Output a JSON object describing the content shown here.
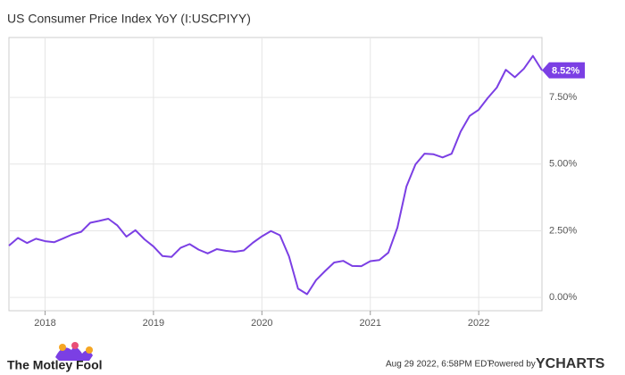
{
  "chart_data": {
    "type": "line",
    "title": "US Consumer Price Index YoY (I:USCPIYY)",
    "categories": [
      null,
      null,
      null,
      null,
      "2018",
      null,
      null,
      null,
      null,
      null,
      null,
      null,
      null,
      null,
      null,
      null,
      "2019",
      null,
      null,
      null,
      null,
      null,
      null,
      null,
      null,
      null,
      null,
      null,
      "2020",
      null,
      null,
      null,
      null,
      null,
      null,
      null,
      null,
      null,
      null,
      null,
      "2021",
      null,
      null,
      null,
      null,
      null,
      null,
      null,
      null,
      null,
      null,
      null,
      "2022",
      null,
      null,
      null,
      null,
      null,
      null,
      null
    ],
    "series": [
      {
        "name": "US Consumer Price Index YoY",
        "color": "#7b3fe4",
        "values": [
          1.94,
          2.23,
          2.04,
          2.2,
          2.11,
          2.07,
          2.21,
          2.36,
          2.46,
          2.8,
          2.87,
          2.95,
          2.7,
          2.28,
          2.52,
          2.18,
          1.91,
          1.55,
          1.52,
          1.86,
          2.0,
          1.79,
          1.65,
          1.81,
          1.75,
          1.71,
          1.76,
          2.05,
          2.29,
          2.49,
          2.33,
          1.54,
          0.33,
          0.12,
          0.65,
          0.99,
          1.31,
          1.37,
          1.18,
          1.17,
          1.36,
          1.4,
          1.68,
          2.62,
          4.16,
          4.99,
          5.39,
          5.37,
          5.25,
          5.39,
          6.22,
          6.81,
          7.04,
          7.48,
          7.87,
          8.54,
          8.26,
          8.58,
          9.06,
          8.52
        ],
        "value_labels": [
          null,
          null,
          null,
          null,
          null,
          null,
          null,
          null,
          null,
          null,
          null,
          null,
          null,
          null,
          null,
          null,
          null,
          null,
          null,
          null,
          null,
          null,
          null,
          null,
          null,
          null,
          null,
          null,
          null,
          null,
          null,
          null,
          null,
          null,
          null,
          null,
          null,
          null,
          null,
          null,
          null,
          null,
          null,
          null,
          null,
          null,
          null,
          null,
          null,
          null,
          null,
          null,
          null,
          null,
          null,
          null,
          null,
          null,
          null,
          "8.52%"
        ]
      }
    ],
    "ylim": [
      -0.5,
      9.75
    ],
    "yticks": [
      {
        "value": 0,
        "label": "0.00%"
      },
      {
        "value": 2.5,
        "label": "2.50%"
      },
      {
        "value": 5,
        "label": "5.00%"
      },
      {
        "value": 7.5,
        "label": "7.50%"
      }
    ],
    "grid": true,
    "brand": "The Motley Fool",
    "timestamp": "Aug 29 2022, 6:58PM EDT.",
    "powered_by": "Powered by",
    "provider": "YCHARTS"
  }
}
